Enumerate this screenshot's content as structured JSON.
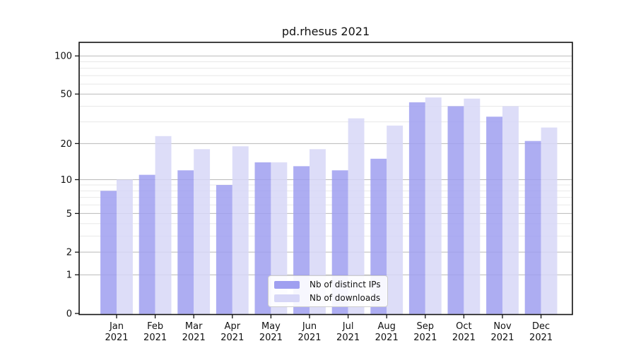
{
  "title": "pd.rhesus 2021",
  "legend": {
    "entries": [
      {
        "label": "Nb of distinct IPs",
        "color": "#9f9ff0"
      },
      {
        "label": "Nb of downloads",
        "color": "#d7d7f7"
      }
    ]
  },
  "colors": {
    "bar_ips": "#9f9ff0",
    "bar_downloads": "#d7d7f7",
    "grid_major": "#b9b9b9",
    "grid_minor": "#e8e8e8",
    "spine": "#111111",
    "text": "#111111",
    "legend_border": "#cccccc"
  },
  "chart_data": {
    "type": "bar",
    "title": "pd.rhesus 2021",
    "categories": [
      "Jan 2021",
      "Feb 2021",
      "Mar 2021",
      "Apr 2021",
      "May 2021",
      "Jun 2021",
      "Jul 2021",
      "Aug 2021",
      "Sep 2021",
      "Oct 2021",
      "Nov 2021",
      "Dec 2021"
    ],
    "series": [
      {
        "name": "Nb of distinct IPs",
        "values": [
          8,
          11,
          12,
          9,
          14,
          13,
          12,
          15,
          43,
          40,
          33,
          21
        ]
      },
      {
        "name": "Nb of downloads",
        "values": [
          10,
          23,
          18,
          19,
          14,
          18,
          32,
          28,
          47,
          46,
          40,
          27
        ]
      }
    ],
    "xlabel": "",
    "ylabel": "",
    "y_scale": "log1p",
    "y_ticks": [
      100,
      50,
      20,
      10,
      5,
      2,
      1,
      0
    ],
    "y_minor_ticks": [
      3,
      4,
      6,
      7,
      8,
      9,
      30,
      40,
      60,
      70,
      80,
      90
    ],
    "ylim": [
      0,
      128
    ],
    "grid": true,
    "legend_position": "inside-bottom-center"
  }
}
